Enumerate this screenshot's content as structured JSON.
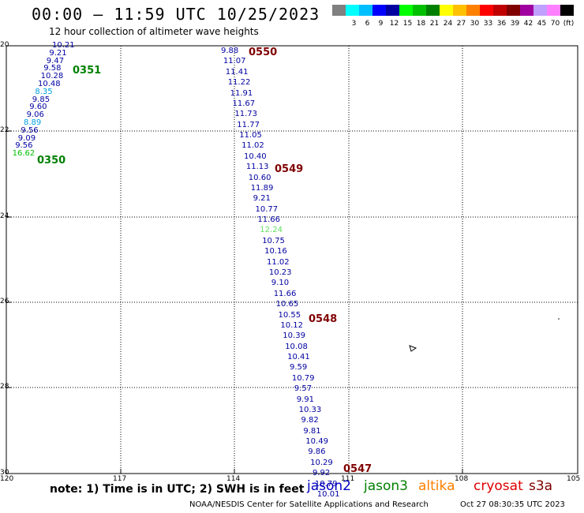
{
  "header": {
    "title": "00:00 – 11:59 UTC 10/25/2023",
    "subtitle": "12 hour collection of altimeter wave heights"
  },
  "legend": {
    "swatches": [
      {
        "color": "#808080",
        "label": ""
      },
      {
        "color": "#00ffff",
        "label": "3"
      },
      {
        "color": "#00bfff",
        "label": "6"
      },
      {
        "color": "#0000ff",
        "label": "9"
      },
      {
        "color": "#0000a0",
        "label": "12"
      },
      {
        "color": "#00ff00",
        "label": "15"
      },
      {
        "color": "#00c000",
        "label": "18"
      },
      {
        "color": "#008000",
        "label": "21"
      },
      {
        "color": "#ffff00",
        "label": "24"
      },
      {
        "color": "#ffc000",
        "label": "27"
      },
      {
        "color": "#ff8000",
        "label": "30"
      },
      {
        "color": "#ff0000",
        "label": "33"
      },
      {
        "color": "#c00000",
        "label": "36"
      },
      {
        "color": "#800000",
        "label": "39"
      },
      {
        "color": "#a000a0",
        "label": "42"
      },
      {
        "color": "#c0a0ff",
        "label": "45"
      },
      {
        "color": "#ff80ff",
        "label": "70"
      },
      {
        "color": "#000000",
        "label": "(ft)"
      }
    ]
  },
  "axes": {
    "lat_labels": [
      "20",
      "22",
      "24",
      "26",
      "28",
      "30"
    ],
    "lon_labels": [
      "120",
      "117",
      "114",
      "111",
      "108",
      "105"
    ]
  },
  "track_west": [
    {
      "v": "10.21",
      "c": "#0000a0"
    },
    {
      "v": "9.21",
      "c": "#0000a0"
    },
    {
      "v": "9.47",
      "c": "#0000a0"
    },
    {
      "v": "9.58",
      "c": "#0000a0"
    },
    {
      "v": "10.28",
      "c": "#0000a0"
    },
    {
      "v": "10.48",
      "c": "#0000a0"
    },
    {
      "v": "8.35",
      "c": "#00a0e0"
    },
    {
      "v": "9.85",
      "c": "#0000a0"
    },
    {
      "v": "9.60",
      "c": "#0000a0"
    },
    {
      "v": "9.06",
      "c": "#0000a0"
    },
    {
      "v": "8.89",
      "c": "#00a0e0"
    },
    {
      "v": "9.56",
      "c": "#0000a0"
    },
    {
      "v": "9.09",
      "c": "#0000a0"
    },
    {
      "v": "9.56",
      "c": "#0000a0"
    },
    {
      "v": "16.62",
      "c": "#00c000"
    }
  ],
  "track_east": [
    {
      "v": "9.88",
      "c": "#0000a0"
    },
    {
      "v": "11.07",
      "c": "#0000a0"
    },
    {
      "v": "11.41",
      "c": "#0000a0"
    },
    {
      "v": "11.22",
      "c": "#0000a0"
    },
    {
      "v": "11.91",
      "c": "#0000a0"
    },
    {
      "v": "11.67",
      "c": "#0000a0"
    },
    {
      "v": "11.73",
      "c": "#0000a0"
    },
    {
      "v": "11.77",
      "c": "#0000a0"
    },
    {
      "v": "11.05",
      "c": "#0000a0"
    },
    {
      "v": "11.02",
      "c": "#0000a0"
    },
    {
      "v": "10.40",
      "c": "#0000a0"
    },
    {
      "v": "11.13",
      "c": "#0000a0"
    },
    {
      "v": "10.60",
      "c": "#0000a0"
    },
    {
      "v": "11.89",
      "c": "#0000a0"
    },
    {
      "v": "9.21",
      "c": "#0000a0"
    },
    {
      "v": "10.77",
      "c": "#0000a0"
    },
    {
      "v": "11.66",
      "c": "#0000a0"
    },
    {
      "v": "12.24",
      "c": "#60e060"
    },
    {
      "v": "10.75",
      "c": "#0000a0"
    },
    {
      "v": "10.16",
      "c": "#0000a0"
    },
    {
      "v": "11.02",
      "c": "#0000a0"
    },
    {
      "v": "10.23",
      "c": "#0000a0"
    },
    {
      "v": "9.10",
      "c": "#0000a0"
    },
    {
      "v": "11.66",
      "c": "#0000a0"
    },
    {
      "v": "10.65",
      "c": "#0000a0"
    },
    {
      "v": "10.55",
      "c": "#0000a0"
    },
    {
      "v": "10.12",
      "c": "#0000a0"
    },
    {
      "v": "10.39",
      "c": "#0000a0"
    },
    {
      "v": "10.08",
      "c": "#0000a0"
    },
    {
      "v": "10.41",
      "c": "#0000a0"
    },
    {
      "v": "9.59",
      "c": "#0000a0"
    },
    {
      "v": "10.79",
      "c": "#0000a0"
    },
    {
      "v": "9.57",
      "c": "#0000a0"
    },
    {
      "v": "9.91",
      "c": "#0000a0"
    },
    {
      "v": "10.33",
      "c": "#0000a0"
    },
    {
      "v": "9.82",
      "c": "#0000a0"
    },
    {
      "v": "9.81",
      "c": "#0000a0"
    },
    {
      "v": "10.49",
      "c": "#0000a0"
    },
    {
      "v": "9.86",
      "c": "#0000a0"
    },
    {
      "v": "10.29",
      "c": "#0000a0"
    },
    {
      "v": "9.92",
      "c": "#0000a0"
    },
    {
      "v": "10.79",
      "c": "#0000a0"
    },
    {
      "v": "10.01",
      "c": "#0000a0"
    }
  ],
  "pass_times": [
    {
      "t": "0550",
      "c": "#800000"
    },
    {
      "t": "0351",
      "c": "#008000"
    },
    {
      "t": "0350",
      "c": "#008000"
    },
    {
      "t": "0549",
      "c": "#800000"
    },
    {
      "t": "0548",
      "c": "#800000"
    },
    {
      "t": "0547",
      "c": "#800000"
    }
  ],
  "footer": {
    "note": "note: 1) Time is in UTC; 2) SWH is in feet",
    "satellites": [
      {
        "name": "jason2",
        "color": "#0000c0"
      },
      {
        "name": "jason3",
        "color": "#008000"
      },
      {
        "name": "altika",
        "color": "#ff8000"
      },
      {
        "name": "cryosat",
        "color": "#e00000"
      },
      {
        "name": "s3a",
        "color": "#800000"
      }
    ],
    "credit": "NOAA/NESDIS Center for Satellite Applications and Research",
    "timestamp": "Oct 27 08:30:35 UTC 2023"
  }
}
